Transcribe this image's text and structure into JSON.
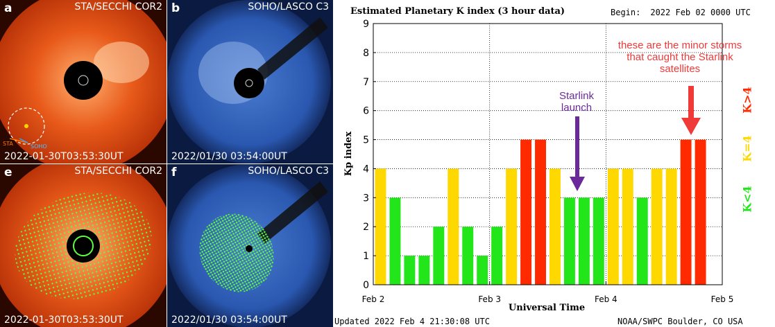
{
  "panels": [
    {
      "letter": "a",
      "instrument": "STA/SECCHI COR2",
      "timestamp": "2022-01-30T03:53:30UT",
      "diagram_labels": [
        "STA",
        "SOHO"
      ]
    },
    {
      "letter": "b",
      "instrument": "SOHO/LASCO C3",
      "timestamp": "2022/01/30 03:54:00UT"
    },
    {
      "letter": "e",
      "instrument": "STA/SECCHI COR2",
      "timestamp": "2022-01-30T03:53:30UT"
    },
    {
      "letter": "f",
      "instrument": "SOHO/LASCO C3",
      "timestamp": "2022/01/30 03:54:00UT"
    }
  ],
  "kp_chart": {
    "title": "Estimated Planetary K index (3 hour data)",
    "begin_label": "Begin:",
    "begin_value": "2022 Feb 02 0000 UTC",
    "updated": "Updated 2022 Feb  4 21:30:08 UTC",
    "source": "NOAA/SWPC Boulder, CO USA",
    "legend": {
      "high": "K>4",
      "mid": "K=4",
      "low": "K<4"
    },
    "annotations": {
      "starlink": "Starlink launch",
      "storms": "these are the minor storms that caught the Starlink satellites"
    }
  },
  "colors": {
    "green": "#22e61a",
    "yellow": "#ffd800",
    "red": "#ff2a00",
    "purple": "#6a2a9a",
    "annotation_red": "#f03a3a"
  },
  "chart_data": {
    "type": "bar",
    "title": "Estimated Planetary K index (3 hour data)",
    "xlabel": "Universal Time",
    "ylabel": "Kp index",
    "ylim": [
      0,
      9
    ],
    "yticks": [
      0,
      1,
      2,
      3,
      4,
      5,
      6,
      7,
      8,
      9
    ],
    "xtick_labels": [
      "Feb 2",
      "Feb 3",
      "Feb 4",
      "Feb 5"
    ],
    "values": [
      4,
      3,
      1,
      1,
      2,
      4,
      2,
      1,
      2,
      4,
      5,
      5,
      4,
      3,
      3,
      3,
      4,
      4,
      3,
      4,
      4,
      5,
      5
    ],
    "bar_colors": [
      "yellow",
      "green",
      "green",
      "green",
      "green",
      "yellow",
      "green",
      "green",
      "green",
      "yellow",
      "red",
      "red",
      "yellow",
      "green",
      "green",
      "green",
      "yellow",
      "yellow",
      "green",
      "yellow",
      "yellow",
      "red",
      "red"
    ],
    "grid": true
  }
}
